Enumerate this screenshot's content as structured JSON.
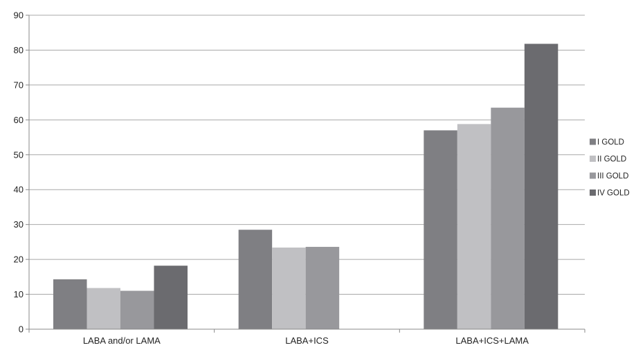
{
  "chart_data": {
    "type": "bar",
    "title": "",
    "xlabel": "",
    "ylabel": "",
    "ylim": [
      0,
      90
    ],
    "yticks": [
      0,
      10,
      20,
      30,
      40,
      50,
      60,
      70,
      80,
      90
    ],
    "grid": true,
    "legend_position": "right",
    "categories": [
      "LABA and/or LAMA",
      "LABA+ICS",
      "LABA+ICS+LAMA"
    ],
    "series": [
      {
        "name": "I GOLD",
        "color": "#7f7f83",
        "values": [
          14.3,
          28.5,
          57.0
        ]
      },
      {
        "name": "II GOLD",
        "color": "#c0c0c3",
        "values": [
          11.8,
          23.4,
          58.8
        ]
      },
      {
        "name": "III GOLD",
        "color": "#98989c",
        "values": [
          11.0,
          23.6,
          63.5
        ]
      },
      {
        "name": "IV GOLD",
        "color": "#6b6b6f",
        "values": [
          18.2,
          null,
          81.8
        ]
      }
    ]
  }
}
